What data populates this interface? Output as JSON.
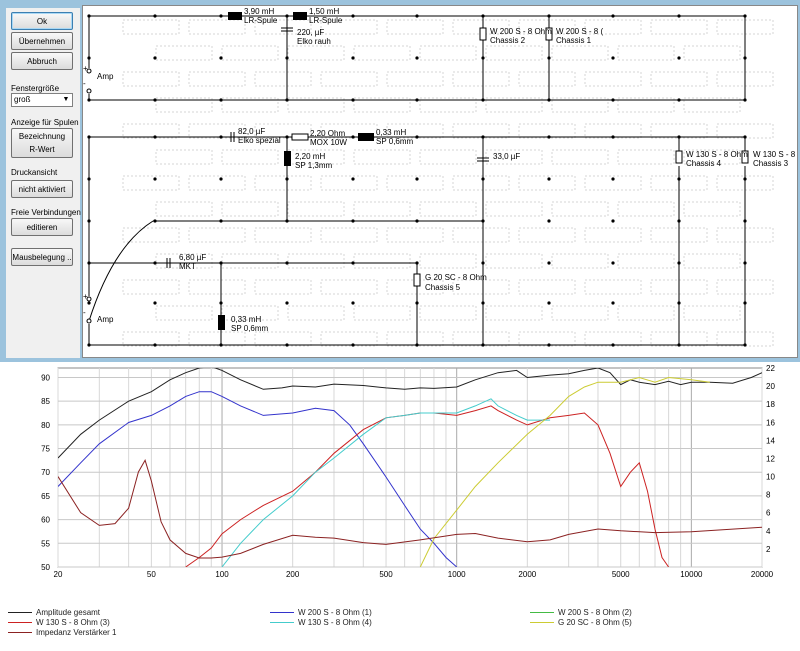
{
  "sidebar": {
    "ok": "Ok",
    "apply": "Übernehmen",
    "cancel": "Abbruch",
    "window_size_label": "Fenstergröße",
    "window_size_value": "groß",
    "coil_display_label": "Anzeige für Spulen",
    "coil_btn_line1": "Bezeichnung",
    "coil_btn_line2": "R-Wert",
    "print_view_label": "Druckansicht",
    "print_view_btn": "nicht aktiviert",
    "free_conn_label": "Freie Verbindungen",
    "free_conn_btn": "editieren",
    "mouse_btn": "Mausbelegung .."
  },
  "circuit": {
    "amp1": "Amp",
    "amp2": "Amp",
    "plus": "+",
    "minus": "-",
    "l1_val": "3,90 mH",
    "l1_type": "LR-Spule",
    "l2_val": "1,50 mH",
    "l2_type": "LR-Spule",
    "c1_val": "220, µF",
    "c1_type": "Elko rauh",
    "w200_2": "W 200 S - 8 Ohm",
    "chassis2": "Chassis 2",
    "w200_1": "W 200 S - 8 (",
    "chassis1": "Chassis 1",
    "c2_val": "82,0 µF",
    "c2_type": "Elko spezial",
    "r1_val": "2,20 Ohm",
    "r1_type": "MOX 10W",
    "l3_val": "0,33 mH",
    "l3_type": "SP 0,6mm",
    "l4_val": "2,20 mH",
    "l4_type": "SP 1,3mm",
    "c3_val": "33,0 µF",
    "w130_4": "W 130 S - 8 Ohm",
    "chassis4": "Chassis 4",
    "w130_3": "W 130 S - 8",
    "chassis3": "Chassis 3",
    "c4_val": "6,80 µF",
    "c4_type": "MKT",
    "g20": "G 20 SC - 8 Ohm",
    "chassis5": "Chassis 5",
    "l5_val": "0,33 mH",
    "l5_type": "SP 0,6mm"
  },
  "chart_data": {
    "type": "line",
    "x_scale": "log",
    "xlim": [
      20,
      20000
    ],
    "x_ticks": [
      "20",
      "50",
      "100",
      "200",
      "500",
      "1000",
      "2000",
      "5000",
      "10000",
      "20000"
    ],
    "ylim_left": [
      50,
      92
    ],
    "y_ticks_left": [
      "50",
      "55",
      "60",
      "65",
      "70",
      "75",
      "80",
      "85",
      "90"
    ],
    "ylim_right": [
      0,
      22
    ],
    "y_ticks_right": [
      "2",
      "4",
      "6",
      "8",
      "10",
      "12",
      "14",
      "16",
      "18",
      "20",
      "22"
    ],
    "grid": true,
    "series": [
      {
        "name": "Amplitude gesamt",
        "color": "#222222",
        "axis": "left",
        "x": [
          20,
          25,
          30,
          40,
          50,
          60,
          70,
          80,
          90,
          100,
          120,
          150,
          180,
          200,
          250,
          300,
          400,
          500,
          600,
          700,
          800,
          1000,
          1200,
          1500,
          1800,
          2000,
          2500,
          3000,
          3500,
          4000,
          4500,
          5000,
          5500,
          6000,
          7000,
          8000,
          9000,
          10000,
          12000,
          15000,
          18000,
          20000
        ],
        "y": [
          73,
          78,
          81,
          85,
          87,
          89.5,
          91,
          92,
          92.3,
          91.5,
          89.5,
          87.5,
          87.8,
          88.2,
          88,
          88.6,
          88.3,
          87.8,
          87.5,
          87.8,
          87.7,
          88,
          89.5,
          91,
          91.5,
          90,
          90.5,
          90.8,
          91.5,
          92,
          91,
          88.5,
          89.5,
          89,
          88.5,
          89.2,
          88.5,
          89,
          89,
          88.8,
          90,
          91
        ]
      },
      {
        "name": "W 200 S - 8 Ohm (1)",
        "color": "#3333cc",
        "axis": "left",
        "x": [
          20,
          25,
          30,
          40,
          50,
          60,
          70,
          80,
          90,
          100,
          120,
          150,
          200,
          250,
          300,
          350,
          400,
          500,
          600,
          700,
          800,
          900,
          1000
        ],
        "y": [
          67,
          72,
          76,
          80.5,
          82,
          84,
          86,
          87,
          87,
          86,
          84,
          82,
          82.5,
          83.5,
          83,
          80,
          76,
          69,
          63,
          58,
          55,
          52,
          50
        ]
      },
      {
        "name": "W 130 S - 8 Ohm (3)",
        "color": "#cc2222",
        "axis": "left",
        "x": [
          70,
          80,
          90,
          100,
          120,
          150,
          200,
          250,
          300,
          400,
          500,
          600,
          700,
          800,
          1000,
          1200,
          1400,
          1500,
          1800,
          2000,
          2500,
          3000,
          3500,
          4000,
          4500,
          5000,
          5500,
          6000,
          6500,
          7000,
          7500,
          8000
        ],
        "y": [
          50,
          52,
          54,
          57,
          60,
          63,
          66,
          70,
          74,
          79,
          81.5,
          82,
          82.5,
          82.5,
          82,
          83,
          84,
          83,
          81,
          80,
          81.5,
          82,
          82.5,
          80,
          74,
          67,
          70,
          72,
          66,
          58,
          52,
          50
        ]
      },
      {
        "name": "W 130 S - 8 Ohm (4)",
        "color": "#44cccc",
        "axis": "left",
        "x": [
          100,
          120,
          150,
          200,
          250,
          300,
          400,
          500,
          600,
          700,
          800,
          1000,
          1200,
          1400,
          1500,
          1800,
          2000,
          2500
        ],
        "y": [
          50,
          55,
          60,
          65,
          70,
          73,
          78,
          81.5,
          82,
          82.5,
          82.5,
          82.5,
          84,
          85.5,
          84,
          82,
          81,
          81
        ]
      },
      {
        "name": "W 200 S - 8 Ohm (2)",
        "color": "#44bb44",
        "axis": "left",
        "x": [],
        "y": []
      },
      {
        "name": "G 20 SC - 8 Ohm (5)",
        "color": "#cccc33",
        "axis": "left",
        "x": [
          700,
          800,
          1000,
          1200,
          1500,
          2000,
          2500,
          3000,
          3500,
          4000,
          5000,
          6000,
          7000,
          8000,
          10000,
          12000
        ],
        "y": [
          50,
          56,
          62,
          67,
          72,
          78,
          82,
          86,
          88,
          89,
          89,
          90,
          89,
          90,
          89.5,
          89
        ]
      },
      {
        "name": "Impedanz Verstärker 1",
        "color": "#8b2222",
        "axis": "right",
        "x": [
          20,
          25,
          30,
          35,
          40,
          44,
          47,
          50,
          55,
          60,
          70,
          80,
          90,
          100,
          120,
          150,
          200,
          250,
          300,
          400,
          500,
          700,
          1000,
          1200,
          1500,
          2000,
          2500,
          3000,
          4000,
          5000,
          7000,
          10000,
          20000
        ],
        "y": [
          10,
          6,
          4.6,
          4.8,
          6.5,
          10.5,
          11.8,
          9.5,
          5,
          3,
          1.5,
          1,
          1,
          1.1,
          1.5,
          2.5,
          3.5,
          3.3,
          3.2,
          2.7,
          2.5,
          3,
          3.6,
          3.7,
          3.2,
          2.8,
          3,
          3.6,
          4.2,
          4,
          3.8,
          3.9,
          4.4
        ]
      }
    ]
  }
}
